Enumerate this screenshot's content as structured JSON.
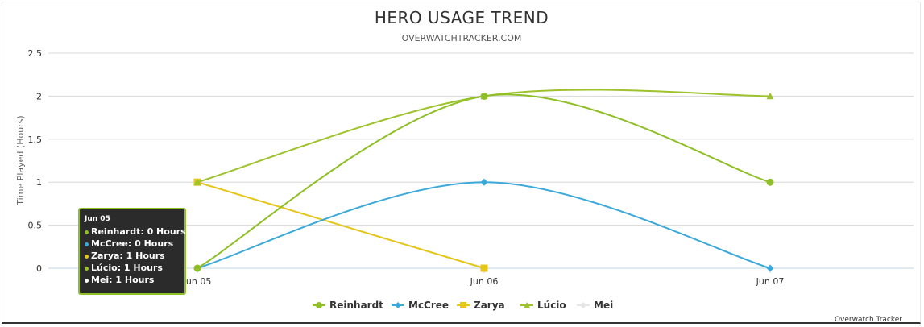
{
  "chart_data": {
    "type": "line",
    "title": "HERO USAGE TREND",
    "subtitle": "OVERWATCHTRACKER.COM",
    "xlabel": "",
    "ylabel": "Time Played (Hours)",
    "categories": [
      "Jun 05",
      "Jun 06",
      "Jun 07"
    ],
    "ylim": [
      0,
      2.5
    ],
    "yticks": [
      0,
      0.5,
      1,
      1.5,
      2,
      2.5
    ],
    "grid": true,
    "legend_position": "bottom",
    "series": [
      {
        "name": "Reinhardt",
        "color": "#8fbf26",
        "marker": "circle",
        "values": [
          0,
          2,
          1
        ]
      },
      {
        "name": "McCree",
        "color": "#3ba9d9",
        "marker": "diamond",
        "values": [
          0,
          1,
          0
        ]
      },
      {
        "name": "Zarya",
        "color": "#e6c619",
        "marker": "square",
        "values": [
          1,
          0,
          null
        ]
      },
      {
        "name": "Lúcio",
        "color": "#9dc22c",
        "marker": "triangle",
        "values": [
          1,
          2,
          2
        ]
      },
      {
        "name": "Mei",
        "color": "#eeeeee",
        "marker": "diamond",
        "values": [
          1,
          0,
          null
        ]
      }
    ],
    "tooltip": {
      "title": "Jun 05",
      "rows": [
        {
          "text": "Reinhardt: 0 Hours",
          "color": "#8fbf26"
        },
        {
          "text": "McCree: 0 Hours",
          "color": "#3ba9d9"
        },
        {
          "text": "Zarya: 1 Hours",
          "color": "#e6c619"
        },
        {
          "text": "Lúcio: 1 Hours",
          "color": "#9dc22c"
        },
        {
          "text": "Mei: 1 Hours",
          "color": "#ffffff"
        }
      ]
    },
    "credit": "Overwatch Tracker"
  }
}
